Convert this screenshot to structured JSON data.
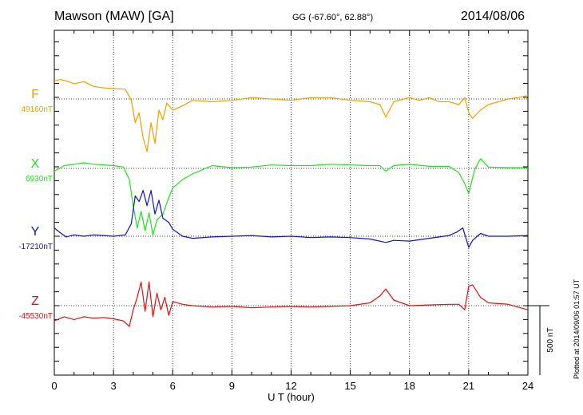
{
  "header": {
    "station": "Mawson (MAW)  [GA]",
    "coords": "GG (-67.60°,  62.88°)",
    "date": "2014/08/06"
  },
  "credit": "Plotted at 2014/09/06 01:57 UT",
  "chart_data": {
    "type": "line",
    "xlabel": "U T (hour)",
    "xlim": [
      0,
      24
    ],
    "xticks": [
      "0",
      "3",
      "6",
      "9",
      "12",
      "15",
      "18",
      "21",
      "24"
    ],
    "grid": true,
    "scale_bar_label": "500 nT",
    "scale_bar_value": 500,
    "series": [
      {
        "name": "F",
        "baseline_label": "49160nT",
        "color": "#f0a000",
        "points": [
          [
            0,
            49290
          ],
          [
            0.3,
            49300
          ],
          [
            0.6,
            49290
          ],
          [
            1,
            49270
          ],
          [
            1.5,
            49285
          ],
          [
            2,
            49250
          ],
          [
            2.5,
            49240
          ],
          [
            3,
            49235
          ],
          [
            3.6,
            49230
          ],
          [
            3.9,
            49150
          ],
          [
            4.1,
            48990
          ],
          [
            4.3,
            49060
          ],
          [
            4.5,
            48880
          ],
          [
            4.7,
            48780
          ],
          [
            4.9,
            48990
          ],
          [
            5.1,
            48840
          ],
          [
            5.3,
            49080
          ],
          [
            5.5,
            49010
          ],
          [
            5.7,
            49130
          ],
          [
            6,
            49080
          ],
          [
            6.5,
            49110
          ],
          [
            7,
            49150
          ],
          [
            8,
            49140
          ],
          [
            9,
            49150
          ],
          [
            10,
            49170
          ],
          [
            11,
            49160
          ],
          [
            12,
            49150
          ],
          [
            13,
            49170
          ],
          [
            14,
            49170
          ],
          [
            15,
            49150
          ],
          [
            16,
            49140
          ],
          [
            16.5,
            49120
          ],
          [
            16.8,
            49030
          ],
          [
            17.2,
            49140
          ],
          [
            18,
            49170
          ],
          [
            18.5,
            49150
          ],
          [
            19,
            49170
          ],
          [
            19.5,
            49140
          ],
          [
            20,
            49140
          ],
          [
            20.5,
            49120
          ],
          [
            20.8,
            49170
          ],
          [
            21,
            49060
          ],
          [
            21.2,
            49020
          ],
          [
            21.6,
            49080
          ],
          [
            22,
            49120
          ],
          [
            22.5,
            49140
          ],
          [
            23,
            49160
          ],
          [
            23.5,
            49170
          ],
          [
            24,
            49185
          ]
        ]
      },
      {
        "name": "X",
        "baseline_label": "6930nT",
        "color": "#22dd22",
        "points": [
          [
            0,
            6910
          ],
          [
            0.5,
            6950
          ],
          [
            1,
            6960
          ],
          [
            1.5,
            6970
          ],
          [
            2,
            6960
          ],
          [
            2.5,
            6955
          ],
          [
            3,
            6950
          ],
          [
            3.5,
            6940
          ],
          [
            3.8,
            6850
          ],
          [
            4,
            6660
          ],
          [
            4.2,
            6500
          ],
          [
            4.4,
            6620
          ],
          [
            4.6,
            6480
          ],
          [
            4.8,
            6610
          ],
          [
            5,
            6450
          ],
          [
            5.2,
            6560
          ],
          [
            5.5,
            6600
          ],
          [
            5.8,
            6720
          ],
          [
            6,
            6790
          ],
          [
            6.5,
            6850
          ],
          [
            7,
            6890
          ],
          [
            7.5,
            6920
          ],
          [
            8,
            6950
          ],
          [
            9,
            6935
          ],
          [
            10,
            6940
          ],
          [
            11,
            6955
          ],
          [
            12,
            6950
          ],
          [
            13,
            6950
          ],
          [
            14,
            6960
          ],
          [
            15,
            6955
          ],
          [
            16,
            6950
          ],
          [
            16.5,
            6950
          ],
          [
            16.8,
            6910
          ],
          [
            17.2,
            6950
          ],
          [
            18,
            6960
          ],
          [
            19,
            6945
          ],
          [
            20,
            6945
          ],
          [
            20.5,
            6900
          ],
          [
            20.8,
            6820
          ],
          [
            21,
            6750
          ],
          [
            21.3,
            6920
          ],
          [
            21.6,
            7000
          ],
          [
            22,
            6940
          ],
          [
            23,
            6935
          ],
          [
            24,
            6935
          ]
        ]
      },
      {
        "name": "Y",
        "baseline_label": "-17210nT",
        "color": "#1010d0",
        "points": [
          [
            0,
            -17150
          ],
          [
            0.3,
            -17185
          ],
          [
            0.6,
            -17215
          ],
          [
            1,
            -17200
          ],
          [
            1.5,
            -17210
          ],
          [
            2,
            -17200
          ],
          [
            2.5,
            -17205
          ],
          [
            3,
            -17210
          ],
          [
            3.6,
            -17200
          ],
          [
            3.9,
            -17120
          ],
          [
            4.1,
            -16920
          ],
          [
            4.3,
            -16960
          ],
          [
            4.5,
            -16880
          ],
          [
            4.7,
            -16990
          ],
          [
            4.9,
            -16880
          ],
          [
            5.1,
            -17050
          ],
          [
            5.3,
            -16950
          ],
          [
            5.5,
            -17080
          ],
          [
            5.8,
            -17110
          ],
          [
            6,
            -17160
          ],
          [
            6.5,
            -17210
          ],
          [
            7,
            -17225
          ],
          [
            8,
            -17215
          ],
          [
            9,
            -17210
          ],
          [
            10,
            -17205
          ],
          [
            11,
            -17215
          ],
          [
            12,
            -17210
          ],
          [
            13,
            -17220
          ],
          [
            14,
            -17215
          ],
          [
            15,
            -17220
          ],
          [
            16,
            -17230
          ],
          [
            16.8,
            -17255
          ],
          [
            17.2,
            -17240
          ],
          [
            18,
            -17245
          ],
          [
            19,
            -17225
          ],
          [
            20,
            -17205
          ],
          [
            20.4,
            -17180
          ],
          [
            20.7,
            -17150
          ],
          [
            21,
            -17290
          ],
          [
            21.2,
            -17240
          ],
          [
            21.6,
            -17190
          ],
          [
            22,
            -17210
          ],
          [
            23,
            -17210
          ],
          [
            24,
            -17205
          ]
        ]
      },
      {
        "name": "Z",
        "baseline_label": "-45530nT",
        "color": "#e01010",
        "points": [
          [
            0,
            -45640
          ],
          [
            0.5,
            -45610
          ],
          [
            1,
            -45630
          ],
          [
            1.5,
            -45610
          ],
          [
            2,
            -45620
          ],
          [
            2.5,
            -45615
          ],
          [
            3,
            -45625
          ],
          [
            3.5,
            -45640
          ],
          [
            3.8,
            -45680
          ],
          [
            4,
            -45560
          ],
          [
            4.2,
            -45470
          ],
          [
            4.4,
            -45360
          ],
          [
            4.6,
            -45570
          ],
          [
            4.8,
            -45360
          ],
          [
            5,
            -45610
          ],
          [
            5.2,
            -45440
          ],
          [
            5.4,
            -45560
          ],
          [
            5.6,
            -45470
          ],
          [
            5.8,
            -45600
          ],
          [
            6,
            -45500
          ],
          [
            6.5,
            -45520
          ],
          [
            7,
            -45530
          ],
          [
            8,
            -45540
          ],
          [
            9,
            -45535
          ],
          [
            10,
            -45545
          ],
          [
            11,
            -45540
          ],
          [
            12,
            -45535
          ],
          [
            13,
            -45540
          ],
          [
            14,
            -45535
          ],
          [
            15,
            -45530
          ],
          [
            16,
            -45510
          ],
          [
            16.5,
            -45460
          ],
          [
            16.8,
            -45410
          ],
          [
            17.2,
            -45490
          ],
          [
            18,
            -45530
          ],
          [
            19,
            -45525
          ],
          [
            20,
            -45520
          ],
          [
            20.5,
            -45520
          ],
          [
            20.8,
            -45560
          ],
          [
            21,
            -45390
          ],
          [
            21.2,
            -45380
          ],
          [
            21.6,
            -45470
          ],
          [
            22,
            -45510
          ],
          [
            23,
            -45520
          ],
          [
            24,
            -45560
          ]
        ]
      }
    ]
  }
}
